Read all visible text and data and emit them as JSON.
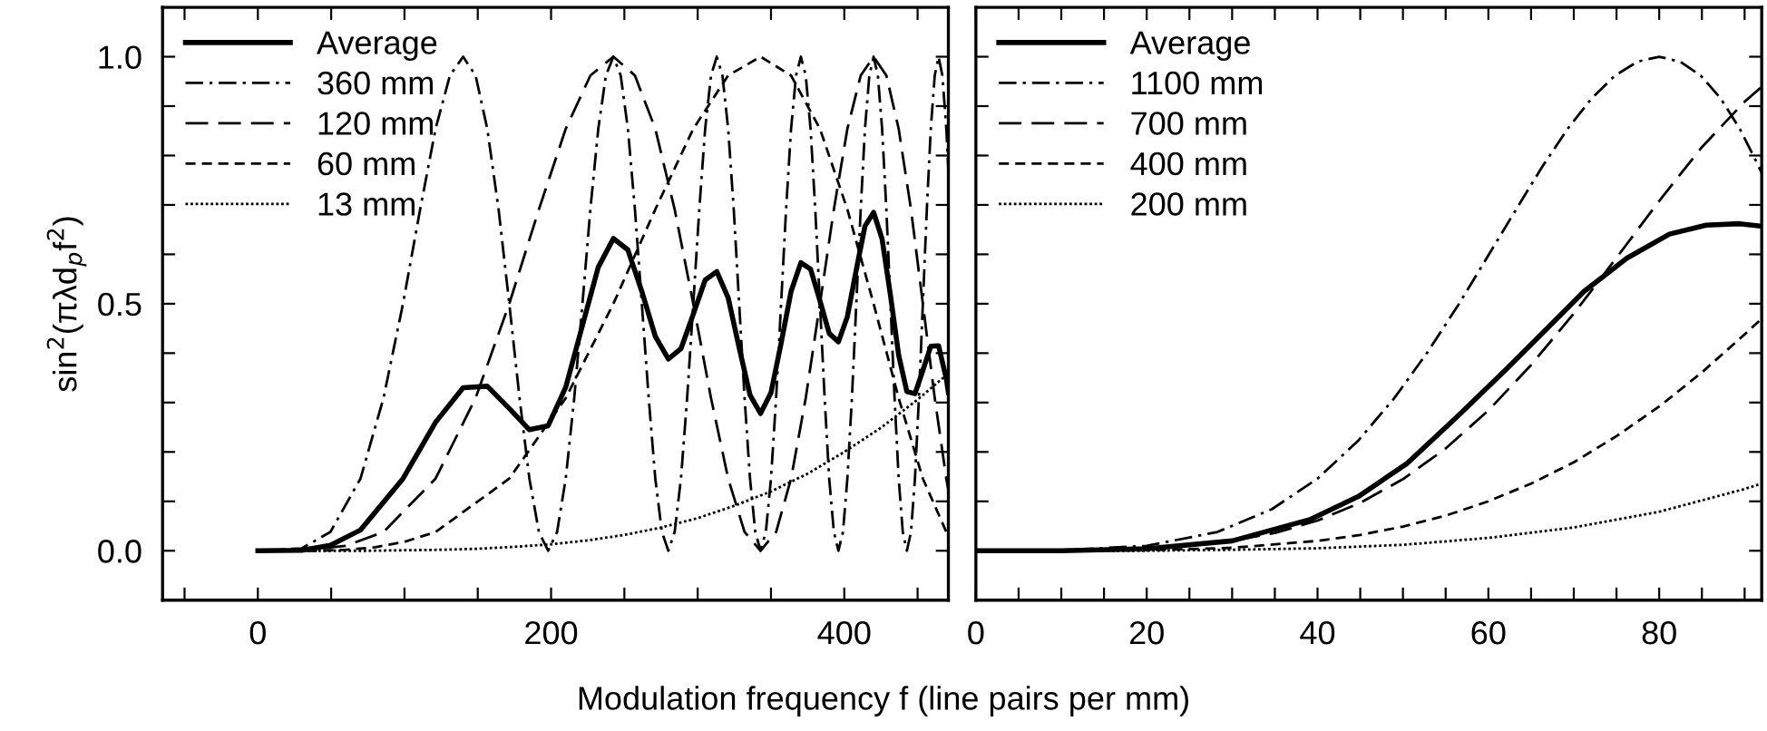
{
  "chart_data": [
    {
      "type": "line",
      "ylabel": "sin$^{2}$(πλd$_{p}$f$^{2}$)",
      "xlabel": "Modulation frequency f (line pairs per mm)",
      "xlim": [
        -65,
        471
      ],
      "ylim": [
        -0.1,
        1.1
      ],
      "xticks": [
        {
          "value": -50,
          "label": null
        },
        0,
        {
          "value": 50,
          "label": null
        },
        {
          "value": 100,
          "label": null
        },
        {
          "value": 150,
          "label": null
        },
        200,
        {
          "value": 250,
          "label": null
        },
        {
          "value": 300,
          "label": null
        },
        {
          "value": 350,
          "label": null
        },
        400,
        {
          "value": 450,
          "label": null
        }
      ],
      "yticks": [
        {
          "value": -0.1,
          "label": null
        },
        {
          "value": 0,
          "label": "0.0"
        },
        {
          "value": 0.1,
          "label": null
        },
        {
          "value": 0.2,
          "label": null
        },
        {
          "value": 0.3,
          "label": null
        },
        {
          "value": 0.4,
          "label": null
        },
        {
          "value": 0.5,
          "label": "0.5"
        },
        {
          "value": 0.6,
          "label": null
        },
        {
          "value": 0.7,
          "label": null
        },
        {
          "value": 0.8,
          "label": null
        },
        {
          "value": 0.9,
          "label": null
        },
        {
          "value": 1,
          "label": "1.0"
        }
      ],
      "legend": "top left",
      "grid": false,
      "series": [
        {
          "name": "Average",
          "color": "#000000",
          "line_style": "solid",
          "x": [
            0,
            30,
            49.5,
            70,
            99,
            121.2,
            140,
            156.5,
            171.5,
            185.2,
            198,
            210,
            221.4,
            232.2,
            242.5,
            252.4,
            261.9,
            271.1,
            280,
            288.6,
            297,
            305.1,
            313,
            320.8,
            328.3,
            335.7,
            342.9,
            350,
            356.9,
            363.7,
            370.4,
            377,
            383.4,
            389.7,
            396,
            402.1,
            408.2,
            414.1,
            420,
            425.8,
            431.5,
            437.1,
            442.7,
            448.2,
            453.6,
            459,
            464.3,
            469.6,
            471
          ],
          "values": [
            0,
            0.001,
            0.011,
            0.042,
            0.146,
            0.26,
            0.33,
            0.333,
            0.288,
            0.245,
            0.253,
            0.331,
            0.456,
            0.574,
            0.632,
            0.609,
            0.525,
            0.434,
            0.388,
            0.409,
            0.479,
            0.548,
            0.565,
            0.512,
            0.411,
            0.315,
            0.278,
            0.32,
            0.42,
            0.525,
            0.583,
            0.57,
            0.506,
            0.44,
            0.423,
            0.474,
            0.569,
            0.657,
            0.685,
            0.631,
            0.517,
            0.396,
            0.322,
            0.318,
            0.365,
            0.414,
            0.415,
            0.348,
            0.32
          ]
        },
        {
          "name": "360 mm",
          "color": "#000000",
          "line_style": "dashdot",
          "x": [
            0,
            30,
            49.5,
            70,
            85.7,
            99,
            110.7,
            121.2,
            131,
            140,
            148.5,
            156.5,
            164.2,
            171.5,
            178.5,
            185.2,
            191.7,
            198,
            204.1,
            210,
            215.8,
            221.4,
            226.8,
            232.2,
            237.4,
            242.5,
            247.5,
            252.4,
            257.2,
            261.9,
            266.6,
            271.1,
            275.6,
            280,
            284.3,
            288.6,
            292.8,
            297,
            301.1,
            305.1,
            309.1,
            313,
            316.9,
            320.8,
            324.6,
            328.3,
            332,
            335.7,
            339.3,
            342.9,
            346.5,
            350,
            353.5,
            356.9,
            360.3,
            363.7,
            367.1,
            370.4,
            373.7,
            377,
            380.2,
            383.4,
            386.6,
            389.7,
            392.9,
            396,
            399.1,
            402.1,
            405.2,
            408.2,
            411.2,
            414.1,
            417.1,
            420,
            422.9,
            425.8,
            428.7,
            431.5,
            434.3,
            437.1,
            439.9,
            442.7,
            445.5,
            448.2,
            450.9,
            453.6,
            456.3,
            459,
            461.7,
            464.3,
            466.9,
            469.6,
            471
          ],
          "values": [
            0,
            0.005,
            0.038,
            0.146,
            0.309,
            0.5,
            0.691,
            0.854,
            0.962,
            1,
            0.962,
            0.854,
            0.691,
            0.5,
            0.309,
            0.146,
            0.038,
            0,
            0.038,
            0.146,
            0.309,
            0.5,
            0.691,
            0.854,
            0.962,
            1,
            0.962,
            0.854,
            0.691,
            0.5,
            0.309,
            0.146,
            0.038,
            0,
            0.038,
            0.146,
            0.309,
            0.5,
            0.691,
            0.854,
            0.962,
            1,
            0.962,
            0.854,
            0.691,
            0.5,
            0.309,
            0.146,
            0.038,
            0,
            0.038,
            0.146,
            0.309,
            0.5,
            0.691,
            0.854,
            0.962,
            1,
            0.962,
            0.854,
            0.691,
            0.5,
            0.309,
            0.146,
            0.038,
            0,
            0.038,
            0.146,
            0.309,
            0.5,
            0.691,
            0.854,
            0.962,
            1,
            0.962,
            0.854,
            0.691,
            0.5,
            0.309,
            0.146,
            0.038,
            0,
            0.038,
            0.146,
            0.309,
            0.5,
            0.691,
            0.854,
            0.962,
            1,
            0.962,
            0.854,
            0.767
          ]
        },
        {
          "name": "120 mm",
          "color": "#000000",
          "line_style": "longdash",
          "x": [
            0,
            30,
            60,
            85.7,
            121.2,
            148.5,
            171.5,
            191.7,
            210,
            226.8,
            242.5,
            257.2,
            271.1,
            284.3,
            297,
            309.1,
            320.8,
            332,
            342.9,
            353.5,
            363.7,
            373.7,
            383.4,
            392.9,
            402.1,
            411.2,
            420,
            428.7,
            437.1,
            445.5,
            453.6,
            461.7,
            469.6,
            471
          ],
          "values": [
            0,
            0.001,
            0.01,
            0.038,
            0.146,
            0.309,
            0.5,
            0.691,
            0.854,
            0.962,
            1,
            0.962,
            0.854,
            0.691,
            0.5,
            0.309,
            0.146,
            0.038,
            0,
            0.038,
            0.146,
            0.309,
            0.5,
            0.691,
            0.854,
            0.962,
            1,
            0.962,
            0.854,
            0.691,
            0.5,
            0.309,
            0.146,
            0.122
          ]
        },
        {
          "name": "60 mm",
          "color": "#000000",
          "line_style": "dashed",
          "x": [
            0,
            40,
            60,
            80,
            100,
            121.2,
            171.5,
            210,
            242.5,
            271.1,
            297,
            320.8,
            342.9,
            363.7,
            383.4,
            402.1,
            420,
            437.1,
            453.6,
            469.6,
            471
          ],
          "values": [
            0,
            0,
            0.002,
            0.007,
            0.018,
            0.038,
            0.146,
            0.309,
            0.5,
            0.691,
            0.854,
            0.962,
            1,
            0.962,
            0.854,
            0.691,
            0.5,
            0.309,
            0.146,
            0.038,
            0.031
          ]
        },
        {
          "name": "13 mm",
          "color": "#000000",
          "line_style": "dotted",
          "x": [
            0,
            25,
            50,
            75,
            100,
            125,
            150,
            175,
            200,
            225,
            250,
            275,
            300,
            325,
            350,
            375,
            400,
            425,
            450,
            471
          ],
          "values": [
            0,
            0,
            0,
            0,
            0.001,
            0.002,
            0.004,
            0.008,
            0.013,
            0.021,
            0.032,
            0.047,
            0.066,
            0.091,
            0.12,
            0.156,
            0.2,
            0.249,
            0.306,
            0.359
          ]
        }
      ]
    },
    {
      "type": "line",
      "xlim": [
        0,
        92
      ],
      "ylim": [
        -0.1,
        1.1
      ],
      "tick_labels": "x",
      "xticks": [
        0,
        {
          "value": 5,
          "label": null
        },
        {
          "value": 10,
          "label": null
        },
        {
          "value": 15,
          "label": null
        },
        20,
        {
          "value": 25,
          "label": null
        },
        {
          "value": 30,
          "label": null
        },
        {
          "value": 35,
          "label": null
        },
        40,
        {
          "value": 45,
          "label": null
        },
        {
          "value": 50,
          "label": null
        },
        {
          "value": 55,
          "label": null
        },
        60,
        {
          "value": 65,
          "label": null
        },
        {
          "value": 70,
          "label": null
        },
        {
          "value": 75,
          "label": null
        },
        80,
        {
          "value": 85,
          "label": null
        },
        {
          "value": 90,
          "label": null
        }
      ],
      "yticks": [
        {
          "value": -0.1,
          "label": null
        },
        {
          "value": 0,
          "label": null
        },
        {
          "value": 0.1,
          "label": null
        },
        {
          "value": 0.2,
          "label": null
        },
        {
          "value": 0.3,
          "label": null
        },
        {
          "value": 0.4,
          "label": null
        },
        {
          "value": 0.5,
          "label": null
        },
        {
          "value": 0.6,
          "label": null
        },
        {
          "value": 0.7,
          "label": null
        },
        {
          "value": 0.8,
          "label": null
        },
        {
          "value": 0.9,
          "label": null
        },
        {
          "value": 1,
          "label": null
        }
      ],
      "legend": "top left",
      "grid": false,
      "series": [
        {
          "name": "Average",
          "color": "#000000",
          "line_style": "solid",
          "x": [
            0,
            10,
            20,
            30,
            39.1,
            44.8,
            50.5,
            56.2,
            62,
            67,
            71.2,
            76.2,
            81.2,
            85.5,
            89.4,
            92
          ],
          "values": [
            0,
            0,
            0.004,
            0.02,
            0.063,
            0.11,
            0.177,
            0.269,
            0.366,
            0.452,
            0.525,
            0.592,
            0.641,
            0.659,
            0.662,
            0.657
          ]
        },
        {
          "name": "1100 mm",
          "color": "#000000",
          "line_style": "dashdot",
          "x": [
            0,
            10,
            20,
            28.28,
            34.64,
            40,
            44.72,
            48.99,
            52.92,
            56.57,
            60,
            63.25,
            66.33,
            69.28,
            72.11,
            74.83,
            77.46,
            80,
            82.46,
            84.85,
            87.18,
            89.44,
            91.65,
            92
          ],
          "values": [
            0,
            0.001,
            0.01,
            0.038,
            0.084,
            0.146,
            0.222,
            0.309,
            0.403,
            0.5,
            0.598,
            0.691,
            0.778,
            0.854,
            0.916,
            0.962,
            0.99,
            1,
            0.99,
            0.962,
            0.916,
            0.854,
            0.778,
            0.765
          ]
        },
        {
          "name": "700 mm",
          "color": "#000000",
          "line_style": "longdash",
          "x": [
            0,
            10,
            20,
            25,
            30,
            35,
            40,
            45,
            50,
            55,
            60,
            65,
            70,
            75,
            80,
            85,
            90,
            92
          ],
          "values": [
            0,
            0,
            0.004,
            0.01,
            0.02,
            0.036,
            0.061,
            0.097,
            0.145,
            0.207,
            0.284,
            0.376,
            0.48,
            0.593,
            0.708,
            0.817,
            0.909,
            0.939
          ]
        },
        {
          "name": "400 mm",
          "color": "#000000",
          "line_style": "dashed",
          "x": [
            0,
            10,
            20,
            30,
            40,
            45,
            50,
            55,
            60,
            65,
            70,
            75,
            80,
            85,
            90,
            92
          ],
          "values": [
            0,
            0,
            0.001,
            0.006,
            0.02,
            0.032,
            0.049,
            0.071,
            0.1,
            0.136,
            0.179,
            0.232,
            0.292,
            0.361,
            0.438,
            0.47
          ]
        },
        {
          "name": "200 mm",
          "color": "#000000",
          "line_style": "dotted",
          "x": [
            0,
            20,
            30,
            40,
            50,
            60,
            70,
            80,
            90,
            92
          ],
          "values": [
            0,
            0,
            0.002,
            0.005,
            0.012,
            0.026,
            0.047,
            0.079,
            0.125,
            0.136
          ]
        }
      ]
    }
  ]
}
